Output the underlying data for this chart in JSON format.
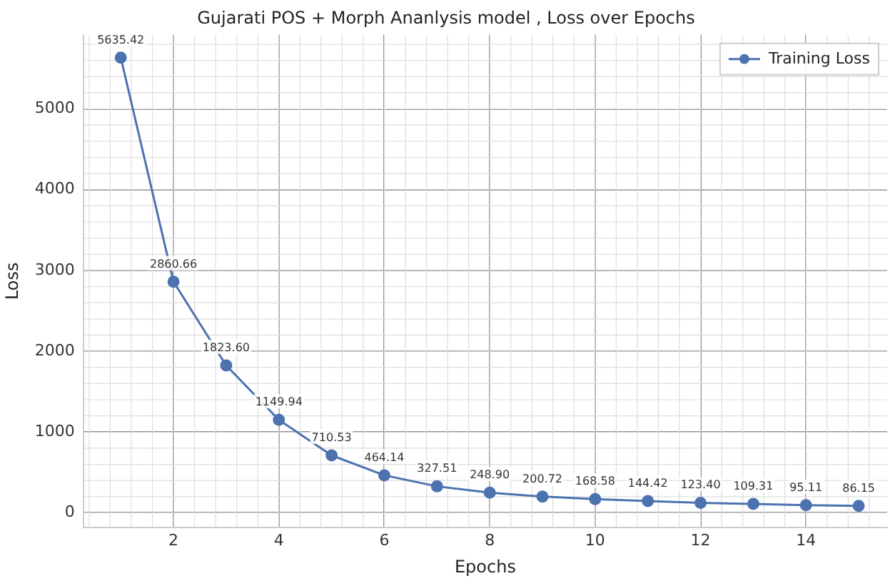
{
  "chart_data": {
    "type": "line",
    "title": "Gujarati POS + Morph Ananlysis model , Loss over Epochs",
    "xlabel": "Epochs",
    "ylabel": "Loss",
    "x": [
      1,
      2,
      3,
      4,
      5,
      6,
      7,
      8,
      9,
      10,
      11,
      12,
      13,
      14,
      15
    ],
    "series": [
      {
        "name": "Training Loss",
        "color": "#4c72b0",
        "values": [
          5635.42,
          2860.66,
          1823.6,
          1149.94,
          710.53,
          464.14,
          327.51,
          248.9,
          200.72,
          168.58,
          144.42,
          123.4,
          109.31,
          95.11,
          86.15
        ],
        "value_labels": [
          "5635.42",
          "2860.66",
          "1823.60",
          "1149.94",
          "710.53",
          "464.14",
          "327.51",
          "248.90",
          "200.72",
          "168.58",
          "144.42",
          "123.40",
          "109.31",
          "95.11",
          "86.15"
        ]
      }
    ],
    "xlim": [
      0.29,
      15.54
    ],
    "xticks": [
      2,
      4,
      6,
      8,
      10,
      12,
      14
    ],
    "ylim": [
      -180,
      5917
    ],
    "yticks": [
      0,
      1000,
      2000,
      3000,
      4000,
      5000
    ],
    "grid": true,
    "legend": "top right",
    "marker": "circle",
    "line_style": "solid"
  }
}
